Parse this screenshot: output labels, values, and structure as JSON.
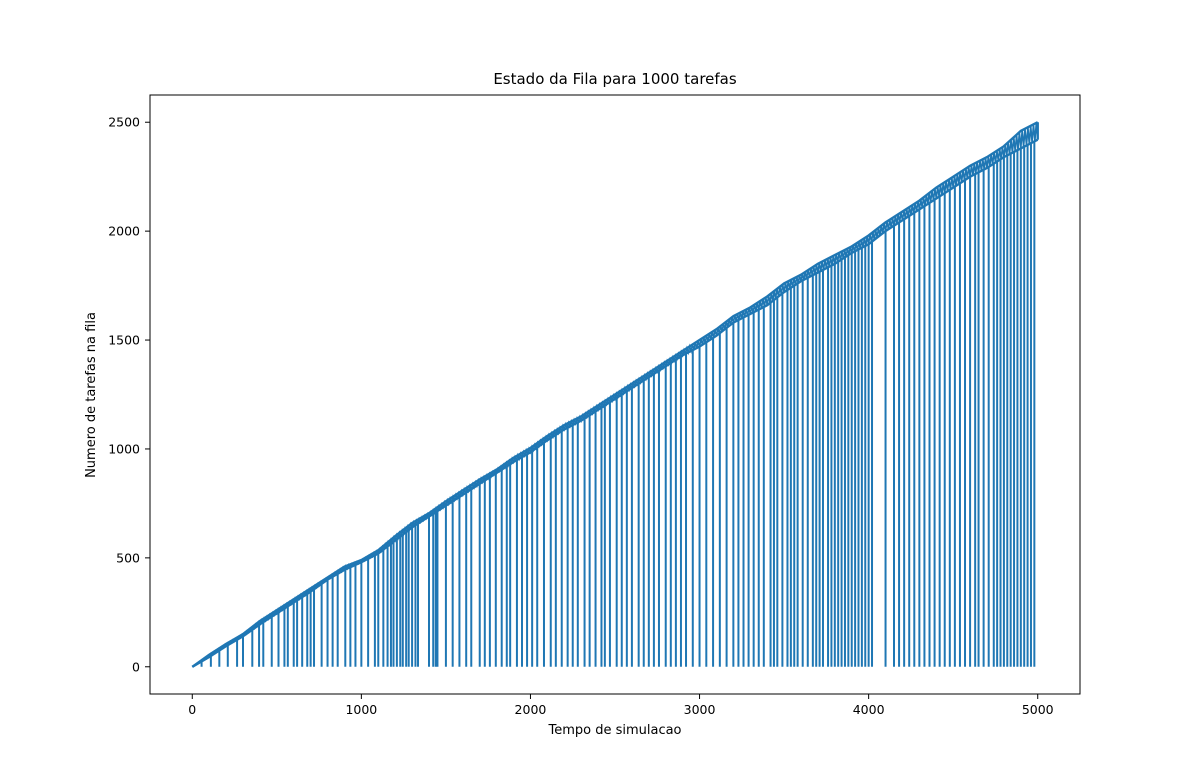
{
  "chart_data": {
    "type": "line",
    "title": "Estado da Fila para 1000 tarefas",
    "xlabel": "Tempo de simulacao",
    "ylabel": "Numero de tarefas na fila",
    "xlim": [
      -250,
      5250
    ],
    "ylim": [
      -125,
      2625
    ],
    "x_ticks": [
      0,
      1000,
      2000,
      3000,
      4000,
      5000
    ],
    "y_ticks": [
      0,
      500,
      1000,
      1500,
      2000,
      2500
    ],
    "x_tick_labels": [
      "0",
      "1000",
      "2000",
      "3000",
      "4000",
      "5000"
    ],
    "y_tick_labels": [
      "0",
      "500",
      "1000",
      "1500",
      "2000",
      "2500"
    ],
    "grid": false,
    "line_color": "#1f77b4",
    "series": [
      {
        "values_description_free": true,
        "x": [
          0,
          100,
          200,
          300,
          400,
          500,
          600,
          700,
          800,
          900,
          1000,
          1100,
          1200,
          1300,
          1400,
          1500,
          1600,
          1700,
          1800,
          1900,
          2000,
          2100,
          2200,
          2300,
          2400,
          2500,
          2600,
          2700,
          2800,
          2900,
          3000,
          3100,
          3200,
          3300,
          3400,
          3500,
          3600,
          3700,
          3800,
          3900,
          4000,
          4100,
          4200,
          4300,
          4400,
          4500,
          4600,
          4700,
          4800,
          4900,
          5000
        ],
        "y": [
          0,
          45,
          95,
          140,
          195,
          245,
          295,
          345,
          400,
          445,
          480,
          520,
          580,
          640,
          690,
          740,
          790,
          840,
          890,
          940,
          985,
          1040,
          1090,
          1130,
          1180,
          1230,
          1280,
          1330,
          1380,
          1430,
          1470,
          1520,
          1580,
          1620,
          1660,
          1720,
          1770,
          1810,
          1850,
          1900,
          1940,
          2000,
          2050,
          2100,
          2150,
          2200,
          2250,
          2290,
          2340,
          2380,
          2420
        ],
        "y_upper_noise": [
          0,
          55,
          105,
          150,
          210,
          260,
          310,
          360,
          410,
          460,
          490,
          535,
          600,
          660,
          705,
          760,
          810,
          860,
          905,
          960,
          1005,
          1060,
          1110,
          1150,
          1200,
          1250,
          1300,
          1350,
          1400,
          1450,
          1500,
          1550,
          1610,
          1650,
          1700,
          1760,
          1800,
          1850,
          1890,
          1930,
          1980,
          2040,
          2090,
          2140,
          2200,
          2250,
          2300,
          2340,
          2390,
          2460,
          2500
        ]
      }
    ],
    "drop_times": [
      55,
      110,
      160,
      210,
      265,
      300,
      355,
      395,
      420,
      470,
      510,
      545,
      565,
      600,
      620,
      650,
      680,
      700,
      720,
      765,
      800,
      830,
      860,
      905,
      935,
      965,
      1000,
      1040,
      1080,
      1100,
      1130,
      1155,
      1175,
      1190,
      1210,
      1230,
      1245,
      1265,
      1280,
      1300,
      1320,
      1335,
      1400,
      1425,
      1440,
      1450,
      1500,
      1540,
      1580,
      1620,
      1650,
      1700,
      1730,
      1760,
      1795,
      1830,
      1860,
      1880,
      1920,
      1950,
      1980,
      2010,
      2040,
      2080,
      2120,
      2150,
      2185,
      2220,
      2250,
      2280,
      2320,
      2350,
      2385,
      2420,
      2440,
      2470,
      2510,
      2540,
      2570,
      2600,
      2640,
      2670,
      2700,
      2730,
      2760,
      2800,
      2830,
      2860,
      2890,
      2920,
      2960,
      3000,
      3040,
      3080,
      3120,
      3160,
      3200,
      3230,
      3260,
      3290,
      3320,
      3350,
      3380,
      3420,
      3440,
      3460,
      3490,
      3520,
      3540,
      3560,
      3580,
      3610,
      3640,
      3670,
      3690,
      3710,
      3730,
      3760,
      3780,
      3800,
      3820,
      3840,
      3860,
      3880,
      3900,
      3920,
      3940,
      3960,
      3980,
      4000,
      4020,
      4100,
      4150,
      4180,
      4210,
      4240,
      4270,
      4300,
      4330,
      4360,
      4390,
      4420,
      4450,
      4480,
      4510,
      4540,
      4570,
      4600,
      4630,
      4650,
      4680,
      4710,
      4740,
      4760,
      4780,
      4800,
      4820,
      4840,
      4860,
      4880,
      4900,
      4920,
      4940,
      4960,
      4980
    ]
  }
}
